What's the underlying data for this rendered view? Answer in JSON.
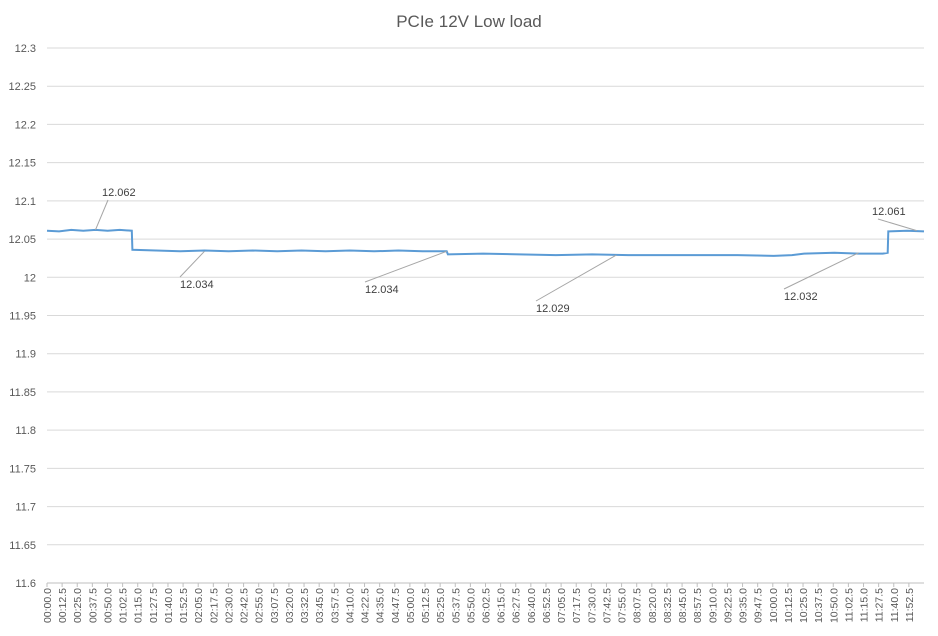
{
  "chart_data": {
    "type": "line",
    "title": "PCIe 12V Low load",
    "xlabel": "",
    "ylabel": "",
    "ylim": [
      11.6,
      12.3
    ],
    "y_ticks": [
      "12.3",
      "12.25",
      "12.2",
      "12.15",
      "12.1",
      "12.05",
      "12",
      "11.95",
      "11.9",
      "11.85",
      "11.8",
      "11.75",
      "11.7",
      "11.65",
      "11.6"
    ],
    "x_ticks": [
      "00:00.0",
      "00:12.5",
      "00:25.0",
      "00:37.5",
      "00:50.0",
      "01:02.5",
      "01:15.0",
      "01:27.5",
      "01:40.0",
      "01:52.5",
      "02:05.0",
      "02:17.5",
      "02:30.0",
      "02:42.5",
      "02:55.0",
      "03:07.5",
      "03:20.0",
      "03:32.5",
      "03:45.0",
      "03:57.5",
      "04:10.0",
      "04:22.5",
      "04:35.0",
      "04:47.5",
      "05:00.0",
      "05:12.5",
      "05:25.0",
      "05:37.5",
      "05:50.0",
      "06:02.5",
      "06:15.0",
      "06:27.5",
      "06:40.0",
      "06:52.5",
      "07:05.0",
      "07:17.5",
      "07:30.0",
      "07:42.5",
      "07:55.0",
      "08:07.5",
      "08:20.0",
      "08:32.5",
      "08:45.0",
      "08:57.5",
      "09:10.0",
      "09:22.5",
      "09:35.0",
      "09:47.5",
      "10:00.0",
      "10:12.5",
      "10:25.0",
      "10:37.5",
      "10:50.0",
      "11:02.5",
      "11:15.0",
      "11:27.5",
      "11:40.0",
      "11:52.5"
    ],
    "x_unit": "seconds",
    "x_max": 724,
    "grid": true,
    "series_color": "#5b9bd5",
    "series": [
      {
        "name": "",
        "points": [
          [
            0,
            12.061
          ],
          [
            10,
            12.06
          ],
          [
            20,
            12.062
          ],
          [
            30,
            12.061
          ],
          [
            40,
            12.062
          ],
          [
            50,
            12.061
          ],
          [
            60,
            12.062
          ],
          [
            70,
            12.061
          ],
          [
            70.5,
            12.036
          ],
          [
            90,
            12.035
          ],
          [
            110,
            12.034
          ],
          [
            130,
            12.035
          ],
          [
            150,
            12.034
          ],
          [
            170,
            12.035
          ],
          [
            190,
            12.034
          ],
          [
            210,
            12.035
          ],
          [
            230,
            12.034
          ],
          [
            250,
            12.035
          ],
          [
            270,
            12.034
          ],
          [
            290,
            12.035
          ],
          [
            310,
            12.034
          ],
          [
            330,
            12.034
          ],
          [
            331,
            12.03
          ],
          [
            360,
            12.031
          ],
          [
            390,
            12.03
          ],
          [
            420,
            12.029
          ],
          [
            450,
            12.03
          ],
          [
            480,
            12.029
          ],
          [
            510,
            12.029
          ],
          [
            540,
            12.029
          ],
          [
            570,
            12.029
          ],
          [
            600,
            12.028
          ],
          [
            615,
            12.029
          ],
          [
            625,
            12.031
          ],
          [
            650,
            12.032
          ],
          [
            670,
            12.031
          ],
          [
            690,
            12.031
          ],
          [
            694,
            12.032
          ],
          [
            694.5,
            12.06
          ],
          [
            710,
            12.061
          ],
          [
            724,
            12.06
          ]
        ]
      }
    ],
    "annotations": [
      {
        "label": "12.062",
        "x": 40,
        "y": 12.062
      },
      {
        "label": "12.034",
        "x": 130,
        "y": 12.034
      },
      {
        "label": "12.034",
        "x": 330,
        "y": 12.034
      },
      {
        "label": "12.029",
        "x": 470,
        "y": 12.029
      },
      {
        "label": "12.032",
        "x": 670,
        "y": 12.032
      },
      {
        "label": "12.061",
        "x": 718,
        "y": 12.061
      }
    ]
  }
}
